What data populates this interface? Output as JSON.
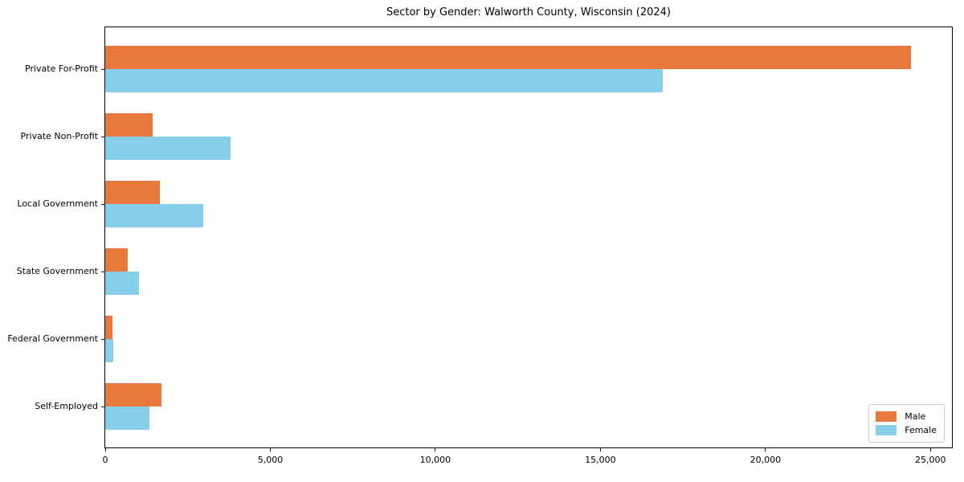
{
  "title": "Sector by Gender: Walworth County, Wisconsin (2024)",
  "colors": {
    "male": "#E8793C",
    "female": "#87CEEB",
    "spine": "#000000",
    "legend_border": "#cccccc",
    "background": "#ffffff"
  },
  "chart_data": {
    "type": "bar",
    "orientation": "horizontal",
    "title": "Sector by Gender: Walworth County, Wisconsin (2024)",
    "xlabel": "",
    "ylabel": "",
    "grid": false,
    "legend_position": "lower right",
    "xlim": [
      0,
      25650
    ],
    "categories": [
      "Private For-Profit",
      "Private Non-Profit",
      "Local Government",
      "State Government",
      "Federal Government",
      "Self-Employed"
    ],
    "series": [
      {
        "name": "Male",
        "color": "#E8793C",
        "values": [
          24400,
          1430,
          1650,
          680,
          220,
          1700
        ]
      },
      {
        "name": "Female",
        "color": "#87CEEB",
        "values": [
          16900,
          3790,
          2960,
          1020,
          245,
          1340
        ]
      }
    ],
    "xticks": [
      {
        "value": 0,
        "label": "0"
      },
      {
        "value": 5000,
        "label": "5,000"
      },
      {
        "value": 10000,
        "label": "10,000"
      },
      {
        "value": 15000,
        "label": "15,000"
      },
      {
        "value": 20000,
        "label": "20,000"
      },
      {
        "value": 25000,
        "label": "25,000"
      }
    ]
  }
}
